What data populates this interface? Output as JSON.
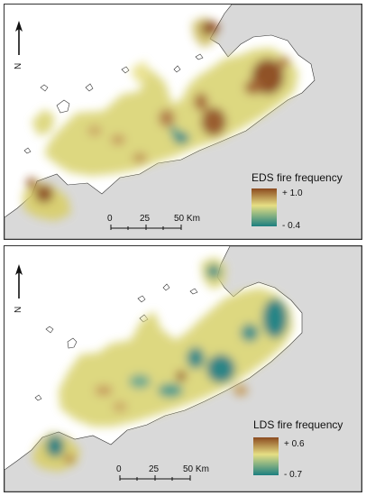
{
  "maps": [
    {
      "legend_title": "EDS fire frequency",
      "legend_max": "+ 1.0",
      "legend_min": "- 0.4",
      "scale_ticks": [
        "0",
        "25",
        "50 Km"
      ],
      "north_label": "N"
    },
    {
      "legend_title": "LDS fire frequency",
      "legend_max": "+ 0.6",
      "legend_min": "- 0.7",
      "scale_ticks": [
        "0",
        "25",
        "50 Km"
      ],
      "north_label": "N"
    }
  ],
  "colors": {
    "land_gray": "#d9d9d9",
    "ramp_high": "#8b4a1f",
    "ramp_mid": "#e6df84",
    "ramp_low": "#1d7f80"
  }
}
